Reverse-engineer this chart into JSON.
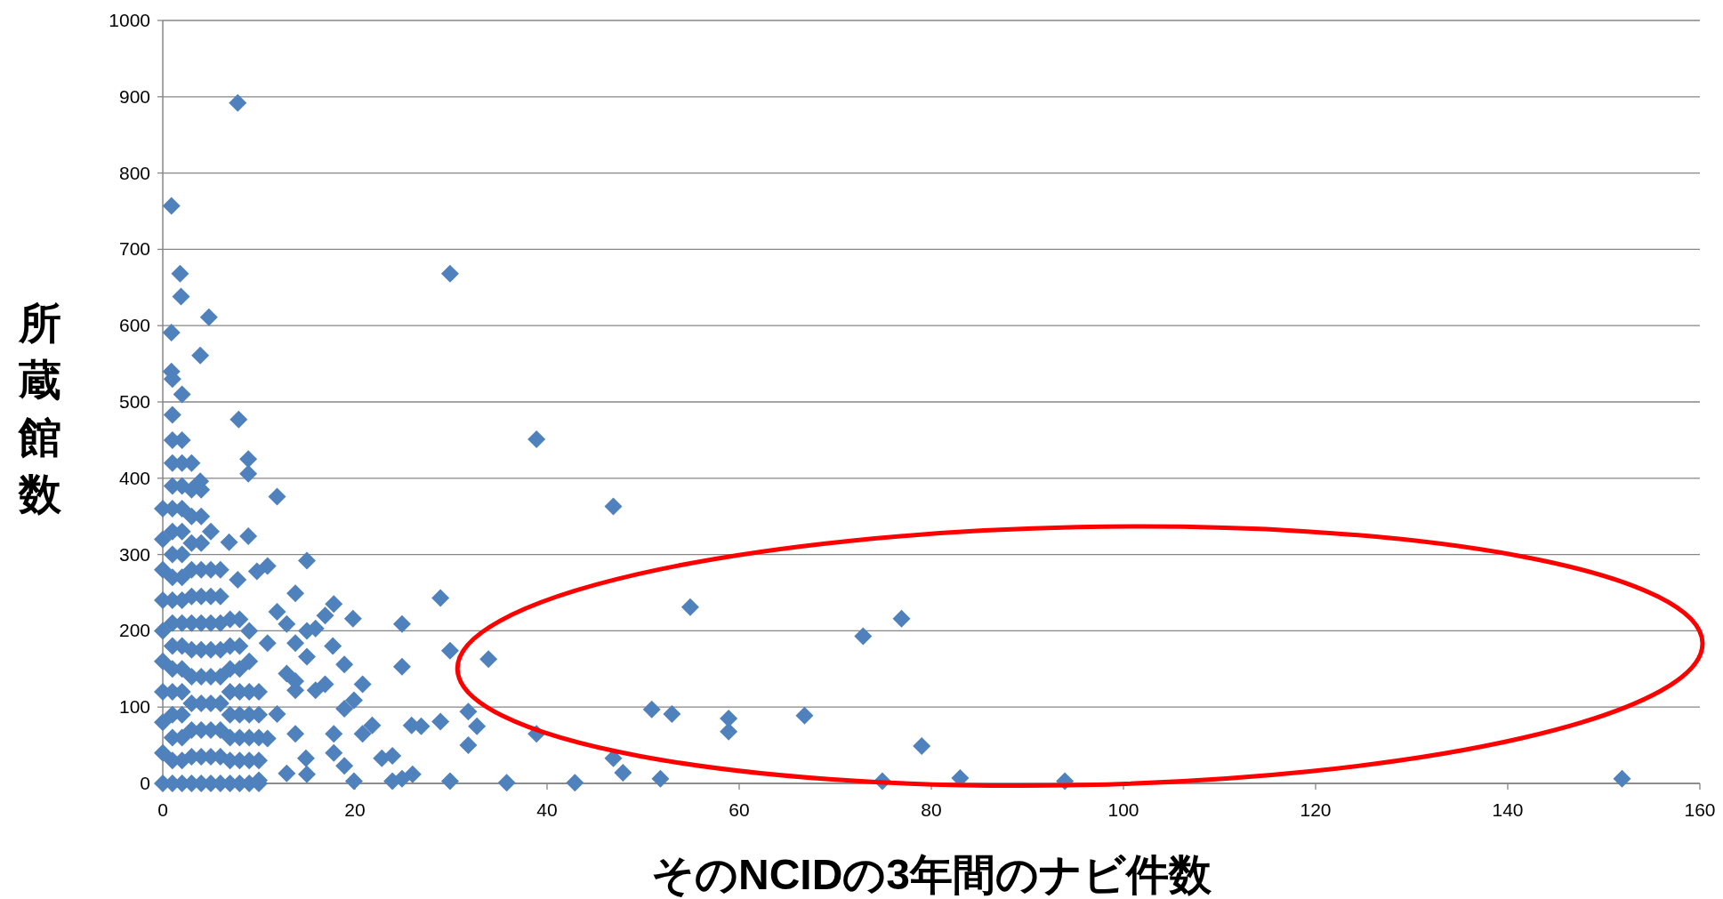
{
  "chart_data": {
    "type": "scatter",
    "xlabel": "そのNCIDの3年間のナビ件数",
    "ylabel": "所蔵館数",
    "xlim": [
      0,
      160
    ],
    "ylim": [
      0,
      1000
    ],
    "xticks": [
      0,
      20,
      40,
      60,
      80,
      100,
      120,
      140,
      160
    ],
    "yticks": [
      0,
      100,
      200,
      300,
      400,
      500,
      600,
      700,
      800,
      900,
      1000
    ],
    "grid": "y",
    "marker": "diamond",
    "series": [
      {
        "color": "#4f81bd",
        "x": [
          7.8,
          0.9,
          29.9,
          1.8,
          1.9,
          4.8,
          0.9,
          3.9,
          0.9,
          2,
          7.9,
          38.9,
          8.9,
          8.9,
          3.9,
          11.9,
          46.9,
          8.9,
          6.9,
          15,
          10.9,
          28.9,
          54.9,
          17.8,
          72.9,
          76.9,
          19.8,
          24.9,
          29.9,
          33.9,
          24.9,
          18.9,
          17.7,
          50.9,
          53,
          58.9,
          58.9,
          66.8,
          38.9,
          31.8,
          32.7,
          31.8,
          79,
          46.9,
          47.9,
          51.8,
          29.9,
          35.8,
          42.9,
          74.9,
          83,
          93.9,
          151.9,
          28.9,
          26.9,
          25.9,
          21.8,
          20.8,
          20.8,
          19.9,
          22.8,
          23.9,
          26,
          23.9,
          24.9,
          19.9,
          18.9,
          17.8,
          17.8,
          18.9,
          16.9,
          15.9,
          13.8,
          12.9,
          11.9,
          13.8,
          10.9,
          14.9,
          15,
          12.9,
          10,
          13.8,
          12.9,
          11.9,
          10.9,
          9.8,
          7.8,
          15.9,
          16.9,
          15,
          13.8,
          15,
          13.8,
          0,
          0,
          0,
          0,
          0,
          0,
          0,
          0,
          0,
          0,
          1,
          1,
          1,
          1,
          1,
          1,
          1,
          1,
          1,
          1,
          1,
          1,
          1,
          1,
          1,
          1,
          1,
          1,
          2,
          2,
          2,
          2,
          2,
          2,
          2,
          2,
          2,
          2,
          2,
          2,
          2,
          2,
          2,
          2,
          3,
          3,
          3,
          3,
          3,
          3,
          3,
          3,
          3,
          3,
          3,
          3,
          3,
          4,
          4,
          4,
          4,
          4,
          4,
          4,
          4,
          4,
          4,
          4,
          4,
          5,
          5,
          5,
          5,
          5,
          5,
          5,
          5,
          5,
          5,
          6,
          6,
          6,
          6,
          6,
          6,
          6,
          6,
          6,
          7,
          7,
          7,
          7,
          7,
          7,
          7,
          7,
          8,
          8,
          8,
          8,
          8,
          8,
          8,
          8,
          9,
          9,
          9,
          9,
          9,
          9,
          9,
          10,
          10,
          10,
          10,
          10
        ],
        "values": [
          892,
          757,
          668,
          668,
          638,
          611,
          591,
          561,
          540,
          510,
          477,
          451,
          425,
          406,
          396,
          376,
          363,
          324,
          316,
          292,
          285,
          243,
          231,
          235,
          193,
          216,
          216,
          209,
          174,
          163,
          153,
          156,
          180,
          97,
          91,
          85,
          68,
          89,
          65,
          94,
          75,
          50,
          49,
          33,
          14,
          6,
          3,
          1,
          1,
          3,
          7,
          3,
          6,
          81,
          75,
          76,
          76,
          65,
          130,
          109,
          33,
          36,
          12,
          3,
          6,
          3,
          23,
          40,
          65,
          98,
          130,
          122,
          122,
          144,
          91,
          65,
          59,
          33,
          12,
          13,
          4,
          249,
          209,
          225,
          184,
          278,
          267,
          203,
          220,
          166,
          184,
          200,
          134,
          0,
          40,
          80,
          120,
          160,
          200,
          240,
          280,
          320,
          360,
          0,
          30,
          60,
          90,
          120,
          150,
          180,
          210,
          240,
          270,
          300,
          330,
          360,
          390,
          420,
          450,
          483,
          530,
          0,
          30,
          60,
          90,
          120,
          150,
          180,
          210,
          240,
          270,
          300,
          330,
          360,
          390,
          420,
          450,
          0,
          35,
          70,
          105,
          140,
          175,
          210,
          245,
          280,
          315,
          350,
          385,
          420,
          0,
          35,
          70,
          105,
          140,
          175,
          210,
          245,
          280,
          315,
          350,
          385,
          0,
          35,
          70,
          105,
          140,
          175,
          210,
          245,
          280,
          330,
          0,
          35,
          70,
          105,
          140,
          175,
          210,
          245,
          280,
          0,
          30,
          60,
          90,
          120,
          150,
          180,
          215,
          0,
          30,
          60,
          90,
          120,
          150,
          180,
          215,
          0,
          30,
          60,
          90,
          120,
          160,
          200,
          0,
          30,
          60,
          90,
          120
        ]
      }
    ]
  }
}
